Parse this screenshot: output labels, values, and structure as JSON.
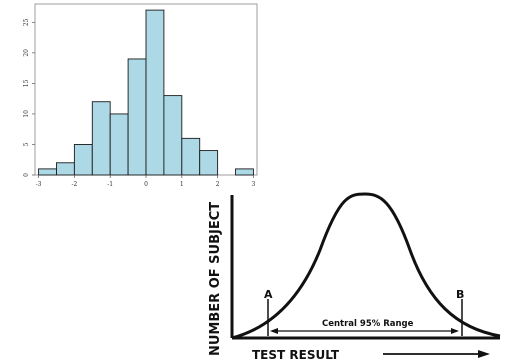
{
  "chart_data": [
    {
      "type": "bar",
      "bins": [
        {
          "x0": -3.0,
          "x1": -2.5,
          "count": 1
        },
        {
          "x0": -2.5,
          "x1": -2.0,
          "count": 2
        },
        {
          "x0": -2.0,
          "x1": -1.5,
          "count": 5
        },
        {
          "x0": -1.5,
          "x1": -1.0,
          "count": 12
        },
        {
          "x0": -1.0,
          "x1": -0.5,
          "count": 10
        },
        {
          "x0": -0.5,
          "x1": 0.0,
          "count": 19
        },
        {
          "x0": 0.0,
          "x1": 0.5,
          "count": 27
        },
        {
          "x0": 0.5,
          "x1": 1.0,
          "count": 13
        },
        {
          "x0": 1.0,
          "x1": 1.5,
          "count": 6
        },
        {
          "x0": 1.5,
          "x1": 2.0,
          "count": 4
        },
        {
          "x0": 2.5,
          "x1": 3.0,
          "count": 1
        }
      ],
      "x_ticks": [
        "-3",
        "-2",
        "-1",
        "0",
        "1",
        "2",
        "3"
      ],
      "y_ticks": [
        "0",
        "5",
        "10",
        "15",
        "20",
        "25"
      ],
      "xlim": [
        -3.1,
        3.1
      ],
      "ylim": [
        0,
        28
      ],
      "bar_color": "#add8e6",
      "title": "",
      "xlabel": "",
      "ylabel": ""
    },
    {
      "type": "line",
      "curve": "normal distribution",
      "xlabel": "TEST RESULT",
      "ylabel": "NUMBER OF SUBJECT",
      "annotations": {
        "left_marker": "A",
        "right_marker": "B",
        "range_label": "Central 95% Range"
      }
    }
  ]
}
